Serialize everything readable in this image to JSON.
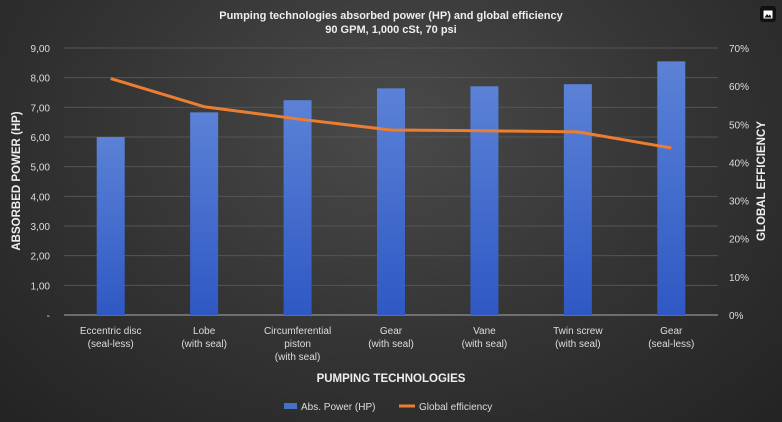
{
  "chart_data": {
    "type": "bar+line",
    "title": "Pumping technologies absorbed power (HP) and global efficiency",
    "subtitle": "90 GPM, 1,000 cSt, 70 psi",
    "xlabel": "PUMPING TECHNOLOGIES",
    "ylabel": "ABSORBED POWER (HP)",
    "y2label": "GLOBAL EFFICIENCY",
    "categories": [
      [
        "Eccentric disc",
        "(seal-less)"
      ],
      [
        "Lobe",
        "(with seal)"
      ],
      [
        "Circumferential",
        "piston",
        "(with seal)"
      ],
      [
        "Gear",
        "(with seal)"
      ],
      [
        "Vane",
        "(with seal)"
      ],
      [
        "Twin screw",
        "(with seal)"
      ],
      [
        "Gear",
        "(seal-less)"
      ]
    ],
    "ylim": [
      0,
      9
    ],
    "yticks": [
      "-",
      "1,00",
      "2,00",
      "3,00",
      "4,00",
      "5,00",
      "6,00",
      "7,00",
      "8,00",
      "9,00"
    ],
    "y2lim": [
      0,
      70
    ],
    "y2ticks": [
      "0%",
      "10%",
      "20%",
      "30%",
      "40%",
      "50%",
      "60%",
      "70%"
    ],
    "grid": true,
    "legend_position": "bottom",
    "series": [
      {
        "name": "Abs. Power (HP)",
        "type": "bar",
        "color": "#4472c4",
        "values": [
          6.0,
          6.83,
          7.24,
          7.64,
          7.71,
          7.78,
          8.55
        ]
      },
      {
        "name": "Global efficiency",
        "type": "line",
        "axis": "right",
        "color": "#ed7d31",
        "values": [
          62,
          54.6,
          51.4,
          48.5,
          48.3,
          48.0,
          43.8
        ]
      }
    ]
  }
}
